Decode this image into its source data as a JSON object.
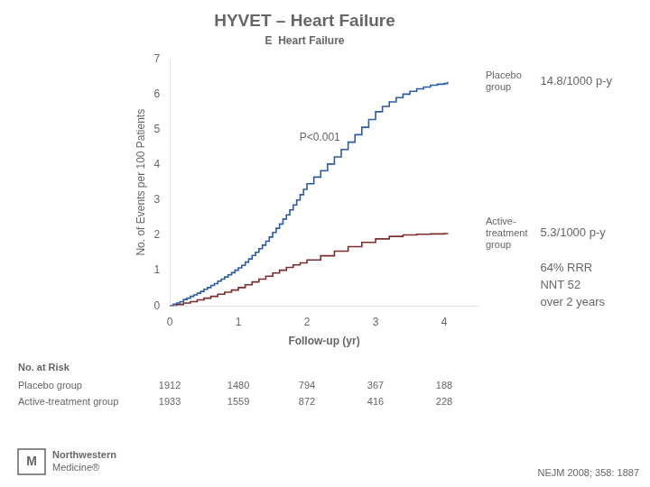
{
  "chart_data": {
    "type": "step",
    "title": "HYVET – Heart Failure",
    "subtitle": "E  Heart Failure",
    "x_label": "Follow-up (yr)",
    "y_label": "No. of Events per 100 Patients",
    "xlim": [
      0,
      4.5
    ],
    "ylim": [
      0,
      7
    ],
    "xticks": [
      0,
      1,
      2,
      3,
      4
    ],
    "yticks": [
      0,
      1,
      2,
      3,
      4,
      5,
      6,
      7
    ],
    "grid": false,
    "series": [
      {
        "name": "Placebo\ngroup",
        "color": "#2b5ca8",
        "rate": "14.8/1000 p-y",
        "x": [
          0.0,
          0.05,
          0.1,
          0.15,
          0.2,
          0.25,
          0.3,
          0.35,
          0.4,
          0.45,
          0.5,
          0.55,
          0.6,
          0.65,
          0.7,
          0.75,
          0.8,
          0.85,
          0.9,
          0.95,
          1.0,
          1.05,
          1.1,
          1.15,
          1.2,
          1.25,
          1.3,
          1.35,
          1.4,
          1.45,
          1.5,
          1.55,
          1.6,
          1.65,
          1.7,
          1.75,
          1.8,
          1.85,
          1.9,
          1.95,
          2.0,
          2.1,
          2.2,
          2.3,
          2.4,
          2.5,
          2.6,
          2.7,
          2.8,
          2.9,
          3.0,
          3.1,
          3.2,
          3.3,
          3.4,
          3.5,
          3.6,
          3.7,
          3.8,
          3.9,
          4.0,
          4.05
        ],
        "values": [
          0.0,
          0.05,
          0.08,
          0.12,
          0.18,
          0.22,
          0.27,
          0.31,
          0.36,
          0.41,
          0.47,
          0.52,
          0.58,
          0.63,
          0.7,
          0.76,
          0.82,
          0.88,
          0.94,
          1.01,
          1.08,
          1.15,
          1.24,
          1.33,
          1.43,
          1.52,
          1.62,
          1.72,
          1.83,
          1.95,
          2.08,
          2.2,
          2.32,
          2.46,
          2.58,
          2.72,
          2.86,
          3.0,
          3.15,
          3.3,
          3.46,
          3.65,
          3.83,
          4.02,
          4.22,
          4.43,
          4.64,
          4.85,
          5.06,
          5.28,
          5.5,
          5.65,
          5.78,
          5.9,
          6.0,
          6.08,
          6.15,
          6.2,
          6.25,
          6.28,
          6.3,
          6.35
        ]
      },
      {
        "name": "Active-\ntreatment\ngroup",
        "color": "#7b2d2d",
        "rate": "5.3/1000 p-y",
        "x": [
          0.0,
          0.1,
          0.2,
          0.3,
          0.4,
          0.5,
          0.6,
          0.7,
          0.8,
          0.9,
          1.0,
          1.1,
          1.2,
          1.3,
          1.4,
          1.5,
          1.6,
          1.7,
          1.8,
          1.9,
          2.0,
          2.2,
          2.4,
          2.6,
          2.8,
          3.0,
          3.2,
          3.4,
          3.6,
          3.8,
          4.0,
          4.05
        ],
        "values": [
          0.0,
          0.04,
          0.08,
          0.12,
          0.17,
          0.22,
          0.27,
          0.33,
          0.39,
          0.45,
          0.52,
          0.6,
          0.68,
          0.76,
          0.84,
          0.93,
          1.01,
          1.09,
          1.16,
          1.22,
          1.3,
          1.42,
          1.55,
          1.68,
          1.8,
          1.9,
          1.97,
          2.01,
          2.03,
          2.04,
          2.05,
          2.06
        ]
      }
    ],
    "annotation": "P<0.001",
    "summary": "64% RRR\nNNT 52\nover 2 years",
    "risk_table": {
      "title": "No. at Risk",
      "at": [
        0,
        1,
        2,
        3,
        4
      ],
      "rows": [
        {
          "label": "Placebo group",
          "values": [
            1912,
            1480,
            794,
            367,
            188
          ]
        },
        {
          "label": "Active-treatment group",
          "values": [
            1933,
            1559,
            872,
            416,
            228
          ]
        }
      ]
    },
    "source": "NEJM 2008; 358: 1887",
    "logo": [
      "M",
      "Northwestern",
      "Medicine®"
    ]
  }
}
